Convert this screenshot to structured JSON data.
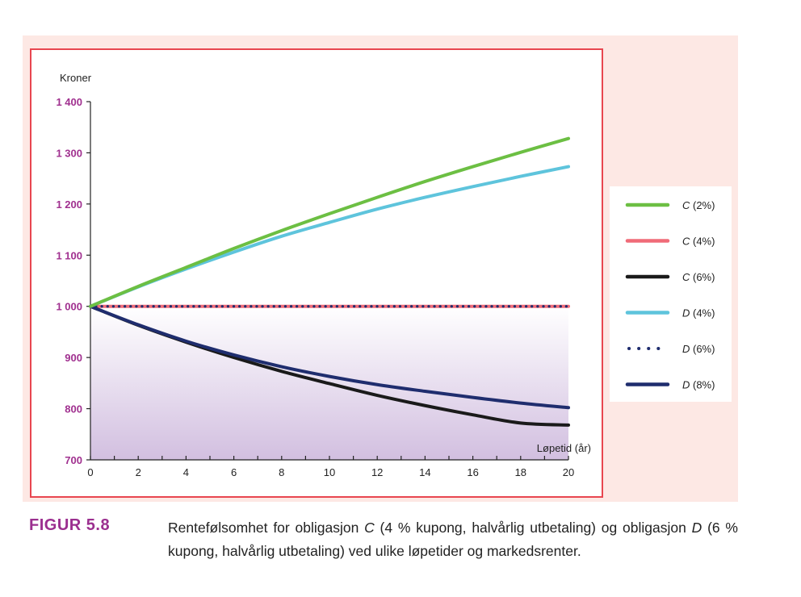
{
  "figure": {
    "label": "FIGUR 5.8",
    "caption_parts": [
      "Rentefølsomhet for obligasjon ",
      "C",
      " (4 % kupong, halvårlig utbetaling) og obligasjon ",
      "D",
      " (6 % kupong, halvårlig utbetaling) ved ulike løpetider og markedsrenter."
    ]
  },
  "chart_data": {
    "type": "line",
    "xlabel": "Løpetid (år)",
    "ylabel": "Kroner",
    "xlim": [
      0,
      20
    ],
    "ylim": [
      700,
      1400
    ],
    "x_ticks": [
      0,
      2,
      4,
      6,
      8,
      10,
      12,
      14,
      16,
      18,
      20
    ],
    "y_ticks": [
      700,
      800,
      900,
      1000,
      1100,
      1200,
      1300,
      1400
    ],
    "y_tick_labels": [
      "700",
      "800",
      "900",
      "1 000",
      "1 100",
      "1 200",
      "1 300",
      "1 400"
    ],
    "x": [
      0,
      2,
      4,
      6,
      8,
      10,
      12,
      14,
      16,
      18,
      20
    ],
    "series": [
      {
        "name": "C (2%)",
        "style": "solid",
        "color": "#6cbf43",
        "values": [
          1000,
          1039,
          1076,
          1113,
          1148,
          1181,
          1213,
          1244,
          1273,
          1301,
          1328
        ]
      },
      {
        "name": "C (4%)",
        "style": "solid",
        "color": "#f06b78",
        "values": [
          1000,
          1000,
          1000,
          1000,
          1000,
          1000,
          1000,
          1000,
          1000,
          1000,
          1000
        ]
      },
      {
        "name": "C (6%)",
        "style": "solid",
        "color": "#1a1a1a",
        "values": [
          1000,
          963,
          930,
          900,
          873,
          849,
          826,
          806,
          788,
          772,
          768
        ]
      },
      {
        "name": "D (4%)",
        "style": "solid",
        "color": "#5ec4dc",
        "values": [
          1000,
          1038,
          1073,
          1106,
          1137,
          1164,
          1190,
          1213,
          1234,
          1254,
          1273
        ]
      },
      {
        "name": "D (6%)",
        "style": "dotted",
        "color": "#1f2d6e",
        "values": [
          1000,
          1000,
          1000,
          1000,
          1000,
          1000,
          1000,
          1000,
          1000,
          1000,
          1000
        ]
      },
      {
        "name": "D (8%)",
        "style": "solid",
        "color": "#1f2d6e",
        "values": [
          1000,
          964,
          932,
          905,
          882,
          863,
          847,
          834,
          822,
          811,
          802
        ]
      }
    ],
    "shaded_region": {
      "y_from": 700,
      "y_to": 1000,
      "color_top": "#ffffff",
      "color_bottom": "#d2bfe0"
    },
    "grid": false,
    "legend_position": "right",
    "frame_color": "#e8464f"
  }
}
